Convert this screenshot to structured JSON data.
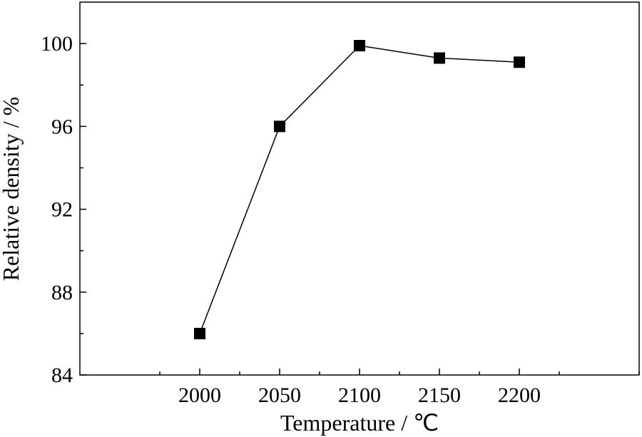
{
  "chart_data": {
    "type": "line",
    "title": "",
    "xlabel": "Temperature / ℃",
    "ylabel": "Relative density / %",
    "x": [
      2000,
      2050,
      2100,
      2150,
      2200
    ],
    "series": [
      {
        "values": [
          86.0,
          96.0,
          99.9,
          99.3,
          99.1
        ],
        "marker": "square",
        "color": "#000000"
      }
    ],
    "xlim": [
      1925,
      2275
    ],
    "ylim": [
      84,
      102
    ],
    "xticks": [
      2000,
      2050,
      2100,
      2150,
      2200
    ],
    "xtick_labels": [
      "2000",
      "2050",
      "2100",
      "2150",
      "2200"
    ],
    "yticks": [
      84,
      88,
      92,
      96,
      100
    ],
    "ytick_labels": [
      "84",
      "88",
      "92",
      "96",
      "100"
    ],
    "grid": false,
    "legend": "none"
  }
}
